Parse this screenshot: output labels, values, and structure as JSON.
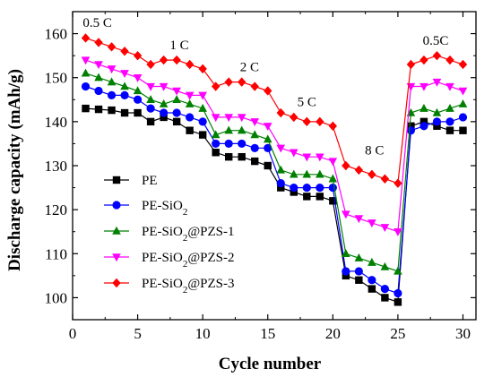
{
  "chart_data": {
    "type": "line",
    "xlabel": "Cycle number",
    "ylabel": "Discharge capacity (mAh/g)",
    "xlim": [
      0,
      31
    ],
    "ylim": [
      95,
      165
    ],
    "xticks": [
      0,
      5,
      10,
      15,
      20,
      25,
      30
    ],
    "yticks": [
      100,
      110,
      120,
      130,
      140,
      150,
      160
    ],
    "grid": false,
    "legend_position": "bottom-left",
    "x": [
      1,
      2,
      3,
      4,
      5,
      6,
      7,
      8,
      9,
      10,
      11,
      12,
      13,
      14,
      15,
      16,
      17,
      18,
      19,
      20,
      21,
      22,
      23,
      24,
      25,
      26,
      27,
      28,
      29,
      30
    ],
    "series": [
      {
        "name": "PE",
        "color": "#000000",
        "marker": "square",
        "values": [
          143,
          142.8,
          142.6,
          142,
          142,
          140,
          141,
          140,
          138,
          137,
          133,
          132,
          132,
          131,
          130,
          125,
          124,
          123,
          123,
          122,
          105,
          104,
          102,
          100,
          99,
          139,
          140,
          139,
          138,
          138
        ]
      },
      {
        "name": "PE-SiO2",
        "color": "#0000ff",
        "marker": "circle",
        "values": [
          148,
          147,
          146,
          146,
          145,
          143,
          142,
          142,
          141,
          140,
          135,
          135,
          135,
          134,
          134,
          126,
          125,
          125,
          125,
          125,
          106,
          106,
          104,
          102,
          101,
          138,
          139,
          140,
          140,
          141
        ]
      },
      {
        "name": "PE-SiO2@PZS-1",
        "color": "#008000",
        "marker": "triangle-up",
        "values": [
          151,
          150,
          149,
          148,
          147,
          145,
          144,
          145,
          144,
          143,
          137,
          138,
          138,
          137,
          136,
          129,
          128,
          128,
          128,
          127,
          110,
          109,
          108,
          107,
          106,
          142,
          143,
          142,
          143,
          144
        ]
      },
      {
        "name": "PE-SiO2@PZS-2",
        "color": "#ff00ff",
        "marker": "triangle-down",
        "values": [
          154,
          153,
          152,
          151,
          150,
          148,
          148,
          147,
          146,
          146,
          141,
          141,
          141,
          140,
          139,
          134,
          133,
          132,
          132,
          131,
          119,
          118,
          117,
          116,
          115,
          148,
          148,
          149,
          148,
          147
        ]
      },
      {
        "name": "PE-SiO2@PZS-3",
        "color": "#ff0000",
        "marker": "diamond",
        "values": [
          159,
          158,
          157,
          156,
          155,
          153,
          154,
          154,
          153,
          152,
          148,
          149,
          149,
          148,
          147,
          142,
          141,
          140,
          140,
          139,
          130,
          129,
          128,
          127,
          126,
          153,
          154,
          155,
          154,
          153
        ]
      }
    ],
    "annotations": [
      {
        "text": "0.5 C",
        "x": 1.9,
        "y": 161.5
      },
      {
        "text": "1 C",
        "x": 8.2,
        "y": 156.5
      },
      {
        "text": "2 C",
        "x": 13.6,
        "y": 151.5
      },
      {
        "text": "5 C",
        "x": 18.0,
        "y": 143.5
      },
      {
        "text": "8 C",
        "x": 23.2,
        "y": 132.5
      },
      {
        "text": "0.5C",
        "x": 27.9,
        "y": 157.5
      }
    ]
  },
  "legend": {
    "entries": [
      {
        "base": "PE",
        "sub": "",
        "suffix": ""
      },
      {
        "base": "PE-SiO",
        "sub": "2",
        "suffix": ""
      },
      {
        "base": "PE-SiO",
        "sub": "2",
        "suffix": "@PZS-1"
      },
      {
        "base": "PE-SiO",
        "sub": "2",
        "suffix": "@PZS-2"
      },
      {
        "base": "PE-SiO",
        "sub": "2",
        "suffix": "@PZS-3"
      }
    ]
  }
}
